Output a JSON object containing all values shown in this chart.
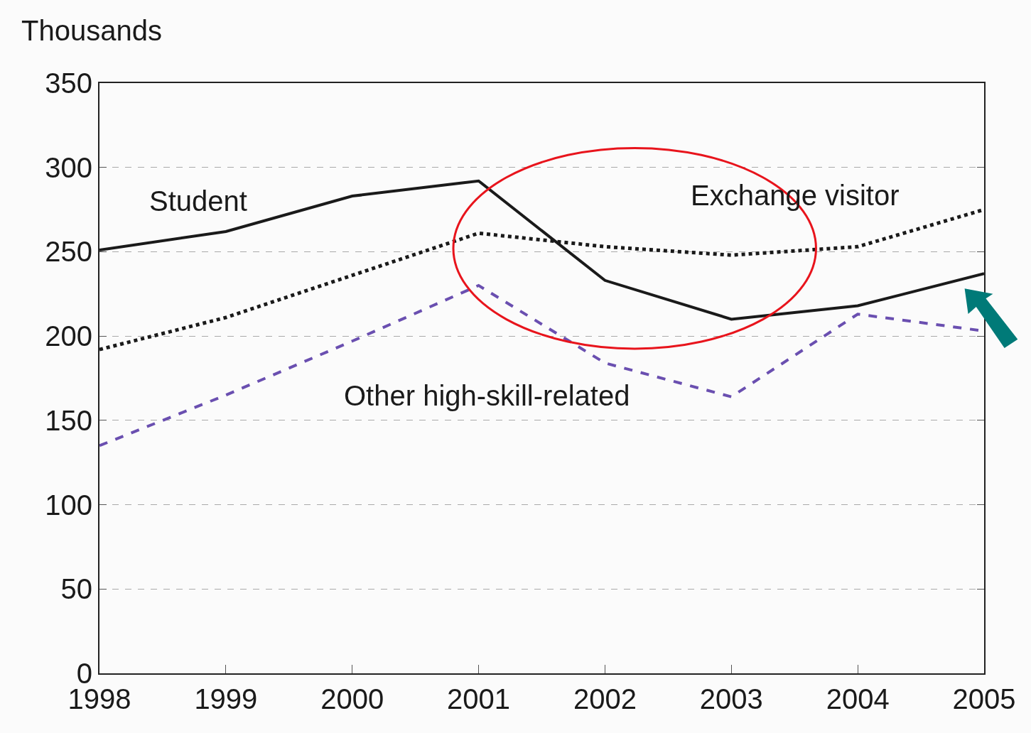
{
  "chart_data": {
    "type": "line",
    "ylabel": "Thousands",
    "x": [
      1998,
      1999,
      2000,
      2001,
      2002,
      2003,
      2004,
      2005
    ],
    "series": [
      {
        "name": "Student",
        "color": "#1a1a1a",
        "line_style": "solid",
        "values": [
          251,
          262,
          283,
          292,
          233,
          210,
          218,
          237
        ]
      },
      {
        "name": "Exchange visitor",
        "color": "#1a1a1a",
        "line_style": "dotted",
        "values": [
          192,
          211,
          236,
          261,
          253,
          248,
          253,
          275
        ]
      },
      {
        "name": "Other high-skill-related",
        "color": "#6a4fb0",
        "line_style": "dashed",
        "values": [
          135,
          165,
          197,
          230,
          184,
          164,
          213,
          203
        ]
      }
    ],
    "xlim": [
      1998,
      2005
    ],
    "xticks": [
      1998,
      1999,
      2000,
      2001,
      2002,
      2003,
      2004,
      2005
    ],
    "ylim": [
      0,
      350
    ],
    "yticks": [
      0,
      50,
      100,
      150,
      200,
      250,
      300,
      350
    ],
    "grid": "y",
    "legend": false,
    "marker": "none"
  }
}
